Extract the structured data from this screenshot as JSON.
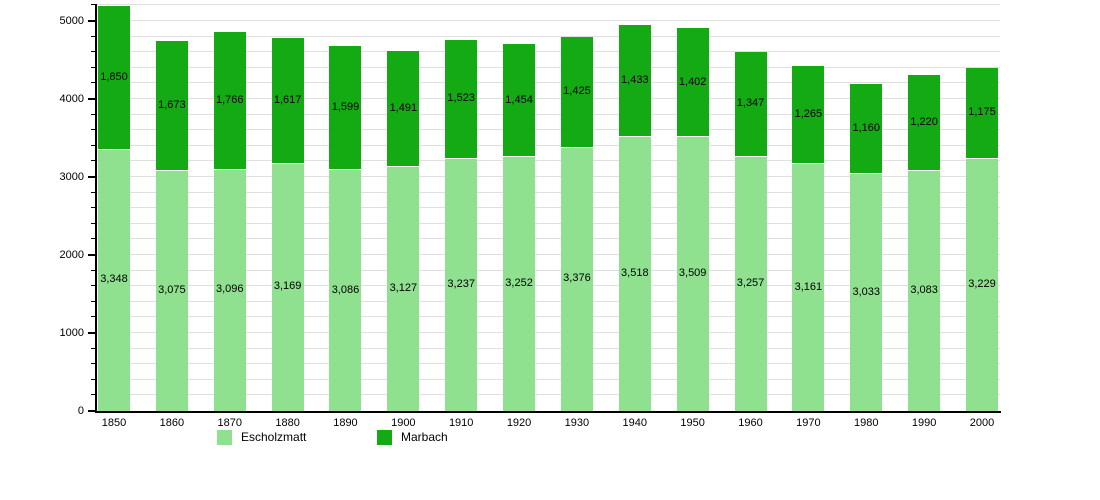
{
  "chart_data": {
    "type": "bar",
    "stacked": true,
    "title": "",
    "xlabel": "",
    "ylabel": "",
    "categories": [
      "1850",
      "1860",
      "1870",
      "1880",
      "1890",
      "1900",
      "1910",
      "1920",
      "1930",
      "1940",
      "1950",
      "1960",
      "1970",
      "1980",
      "1990",
      "2000"
    ],
    "series": [
      {
        "name": "Escholzmatt",
        "color": "#8FE08F",
        "values": [
          3348,
          3075,
          3096,
          3169,
          3086,
          3127,
          3237,
          3252,
          3376,
          3518,
          3509,
          3257,
          3161,
          3033,
          3083,
          3229
        ]
      },
      {
        "name": "Marbach",
        "color": "#14AA14",
        "values": [
          1850,
          1673,
          1766,
          1617,
          1599,
          1491,
          1523,
          1454,
          1425,
          1433,
          1402,
          1347,
          1265,
          1160,
          1220,
          1175
        ]
      }
    ],
    "ylim": [
      0,
      5200
    ],
    "y_ticks": [
      0,
      1000,
      2000,
      3000,
      4000,
      5000
    ],
    "y_minor_tick_interval": 200,
    "grid_interval": 200,
    "grid": true,
    "legend_position": "bottom",
    "value_labels_shown": true
  },
  "legend": {
    "items": [
      {
        "label": "Escholzmatt",
        "color": "#8FE08F"
      },
      {
        "label": "Marbach",
        "color": "#14AA14"
      }
    ]
  },
  "colors": {
    "gridline": "#e0e0e0",
    "axis": "#000000",
    "background": "#ffffff"
  }
}
